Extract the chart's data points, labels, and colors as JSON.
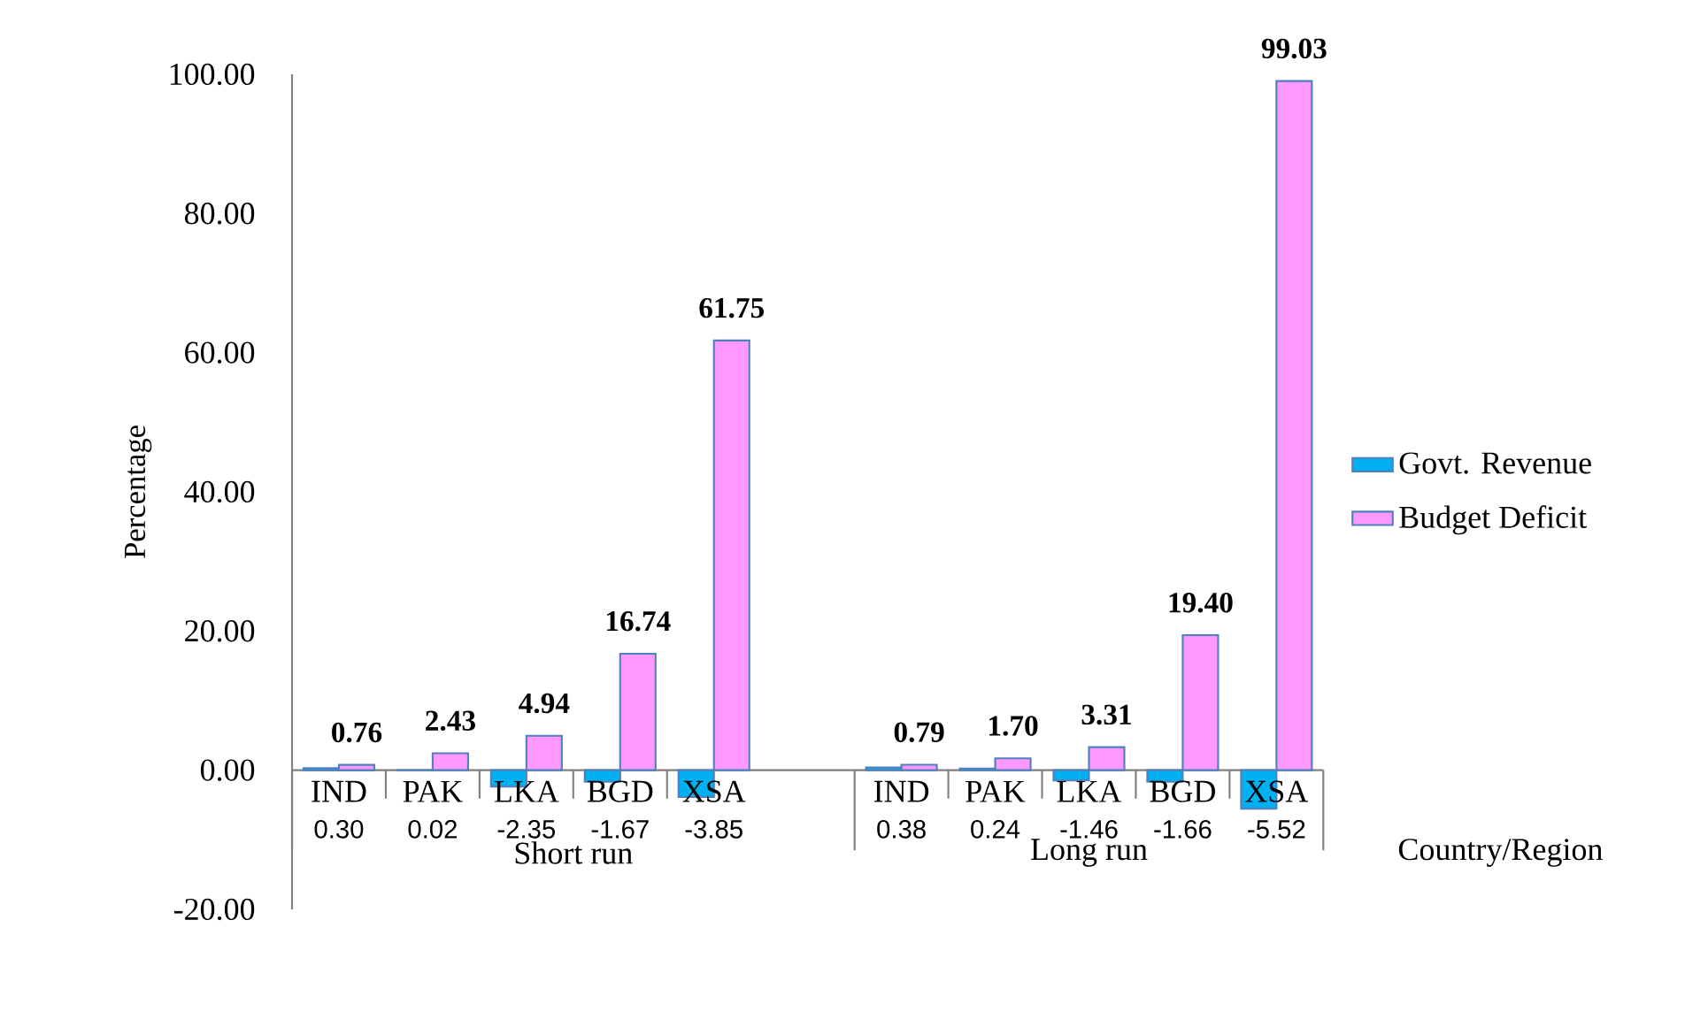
{
  "chart_data": {
    "type": "bar",
    "ylabel": "Percentage",
    "xlabel": "Country/Region",
    "categories": [
      "IND",
      "PAK",
      "LKA",
      "BGD",
      "XSA",
      null,
      "IND",
      "PAK",
      "LKA",
      "BGD",
      "XSA"
    ],
    "series": [
      {
        "name": "Govt. Revenue",
        "color": "#00b0f0",
        "values": [
          0.3,
          0.02,
          -2.35,
          -1.67,
          -3.85,
          null,
          0.38,
          0.24,
          -1.46,
          -1.66,
          -5.52
        ],
        "value_labels": [
          "0.30",
          "0.02",
          "-2.35",
          "-1.67",
          "-3.85",
          null,
          "0.38",
          "0.24",
          "-1.46",
          "-1.66",
          "-5.52"
        ]
      },
      {
        "name": "Budget Deficit",
        "color": "#ff99ff",
        "values": [
          0.76,
          2.43,
          4.94,
          16.74,
          61.75,
          null,
          0.79,
          1.7,
          3.31,
          19.4,
          99.03
        ],
        "value_labels": [
          "0.76",
          "2.43",
          "4.94",
          "16.74",
          "61.75",
          null,
          "0.79",
          "1.70",
          "3.31",
          "19.40",
          "99.03"
        ]
      }
    ],
    "ylim": [
      -20,
      100
    ],
    "yticks": [
      {
        "value": -20,
        "label": "-20.00"
      },
      {
        "value": 0,
        "label": "0.00"
      },
      {
        "value": 20,
        "label": "20.00"
      },
      {
        "value": 40,
        "label": "40.00"
      },
      {
        "value": 60,
        "label": "60.00"
      },
      {
        "value": 80,
        "label": "80.00"
      },
      {
        "value": 100,
        "label": "100.00"
      }
    ],
    "annotations": [
      "Short run",
      "Long run"
    ],
    "legend": "right",
    "grid": false
  }
}
